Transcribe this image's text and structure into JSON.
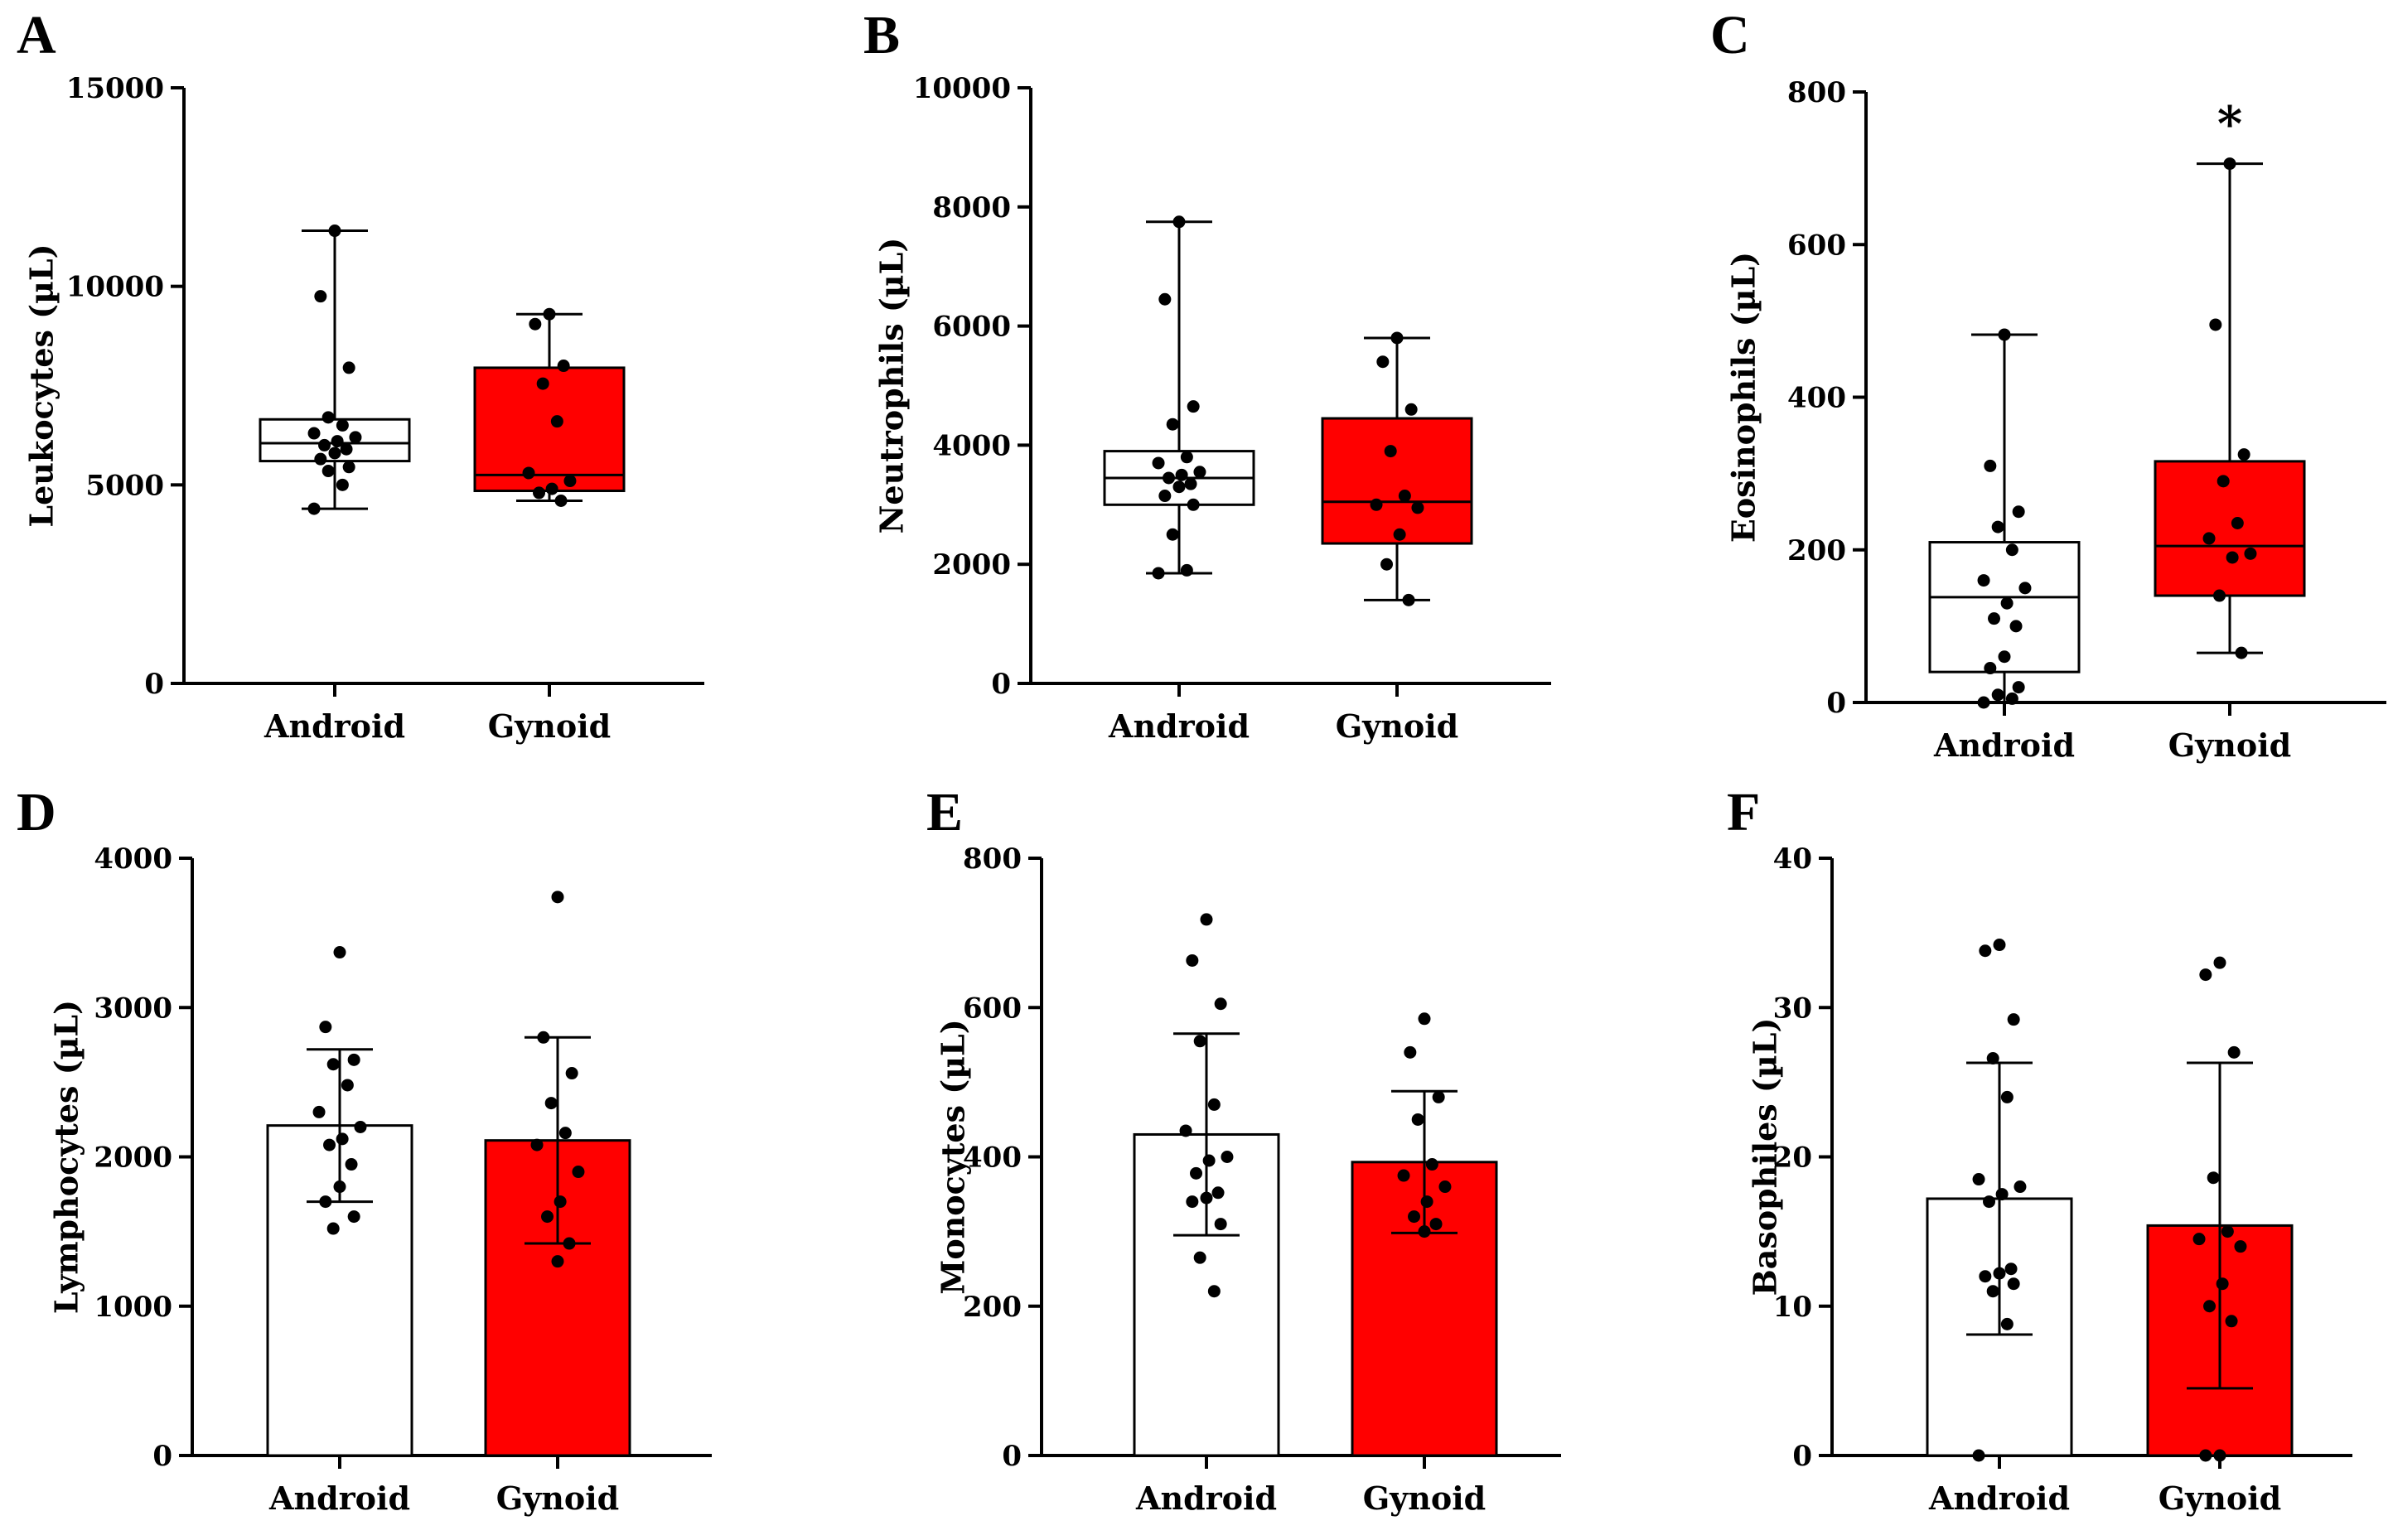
{
  "colors": {
    "android": "#ffffff",
    "gynoid": "#ff0000",
    "ink": "#000000"
  },
  "panels": [
    {
      "letter": "A",
      "type": "box",
      "ylabel": "Leukocytes (µL)",
      "yticks": [
        0,
        5000,
        10000,
        15000
      ],
      "ylim": [
        0,
        15000
      ],
      "categories": [
        "Android",
        "Gynoid"
      ],
      "groups": [
        {
          "min": 4400,
          "q1": 5600,
          "median": 6050,
          "q3": 6650,
          "max": 11400,
          "points": [
            11400,
            9750,
            7950,
            6700,
            6500,
            6300,
            6200,
            6100,
            6000,
            5900,
            5800,
            5650,
            5450,
            5350,
            5000,
            4400
          ]
        },
        {
          "min": 4600,
          "q1": 4850,
          "median": 5250,
          "q3": 7950,
          "max": 9300,
          "points": [
            9300,
            9050,
            8000,
            7550,
            6600,
            5300,
            5100,
            4900,
            4800,
            4600
          ]
        }
      ],
      "annotation": ""
    },
    {
      "letter": "B",
      "type": "box",
      "ylabel": "Neutrophils (µL)",
      "yticks": [
        0,
        2000,
        4000,
        6000,
        8000,
        10000
      ],
      "ylim": [
        0,
        10000
      ],
      "categories": [
        "Android",
        "Gynoid"
      ],
      "groups": [
        {
          "min": 1850,
          "q1": 3000,
          "median": 3450,
          "q3": 3900,
          "max": 7750,
          "points": [
            7750,
            6450,
            4650,
            4350,
            3800,
            3700,
            3550,
            3500,
            3450,
            3350,
            3300,
            3150,
            3000,
            2500,
            1900,
            1850
          ]
        },
        {
          "min": 1400,
          "q1": 2350,
          "median": 3050,
          "q3": 4450,
          "max": 5800,
          "points": [
            5800,
            5400,
            4600,
            3900,
            3150,
            3000,
            2950,
            2500,
            2000,
            1400
          ]
        }
      ],
      "annotation": ""
    },
    {
      "letter": "C",
      "type": "box",
      "ylabel": "Eosinophils (µL)",
      "yticks": [
        0,
        200,
        400,
        600,
        800
      ],
      "ylim": [
        0,
        800
      ],
      "categories": [
        "Android",
        "Gynoid"
      ],
      "groups": [
        {
          "min": 0,
          "q1": 40,
          "median": 138,
          "q3": 210,
          "max": 482,
          "points": [
            482,
            310,
            250,
            230,
            200,
            160,
            150,
            130,
            110,
            100,
            60,
            45,
            20,
            10,
            5,
            0
          ]
        },
        {
          "min": 65,
          "q1": 140,
          "median": 205,
          "q3": 316,
          "max": 706,
          "points": [
            706,
            495,
            325,
            290,
            235,
            215,
            195,
            190,
            140,
            65
          ]
        }
      ],
      "annotation": "*"
    },
    {
      "letter": "D",
      "type": "bar",
      "ylabel": "Lymphocytes (µL)",
      "yticks": [
        0,
        1000,
        2000,
        3000,
        4000
      ],
      "ylim": [
        0,
        4000
      ],
      "categories": [
        "Android",
        "Gynoid"
      ],
      "groups": [
        {
          "mean": 2210,
          "sd": 510,
          "points": [
            3370,
            2870,
            2650,
            2620,
            2480,
            2300,
            2200,
            2120,
            2080,
            1950,
            1800,
            1700,
            1600,
            1520
          ]
        },
        {
          "mean": 2110,
          "sd": 690,
          "points": [
            3740,
            2800,
            2560,
            2360,
            2160,
            2080,
            1900,
            1700,
            1600,
            1420,
            1300
          ]
        }
      ],
      "annotation": ""
    },
    {
      "letter": "E",
      "type": "bar",
      "ylabel": "Monocytes (µL)",
      "yticks": [
        0,
        200,
        400,
        600,
        800
      ],
      "ylim": [
        0,
        800
      ],
      "categories": [
        "Android",
        "Gynoid"
      ],
      "groups": [
        {
          "mean": 430,
          "sd": 135,
          "points": [
            718,
            663,
            605,
            555,
            470,
            435,
            400,
            395,
            378,
            352,
            345,
            340,
            310,
            265,
            220
          ]
        },
        {
          "mean": 393,
          "sd": 95,
          "points": [
            585,
            540,
            480,
            450,
            390,
            375,
            360,
            340,
            320,
            310,
            300
          ]
        }
      ],
      "annotation": ""
    },
    {
      "letter": "F",
      "type": "bar",
      "ylabel": "Basophiles (µL)",
      "yticks": [
        0,
        10,
        20,
        30,
        40
      ],
      "ylim": [
        0,
        40
      ],
      "categories": [
        "Android",
        "Gynoid"
      ],
      "groups": [
        {
          "mean": 17.2,
          "sd": 9.1,
          "points": [
            34.2,
            33.8,
            29.2,
            26.6,
            24,
            18.5,
            18,
            17.5,
            17,
            12.5,
            12.2,
            12,
            11.5,
            11,
            8.8,
            0
          ]
        },
        {
          "mean": 15.4,
          "sd": 10.9,
          "points": [
            33,
            32.2,
            27,
            18.6,
            15,
            14.5,
            14,
            11.5,
            10,
            9,
            0,
            0
          ]
        }
      ],
      "annotation": ""
    }
  ]
}
